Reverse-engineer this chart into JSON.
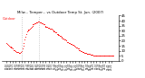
{
  "title": "Milw... Temper... vs Outdoor Temp St. Jun. (2007)",
  "legend_label": "Outdoor",
  "background_color": "#ffffff",
  "line_color": "#ff0000",
  "vline_color": "#aaaaaa",
  "ylim": [
    0,
    45
  ],
  "y_tick_interval": 5,
  "vlines": [
    20,
    43
  ],
  "num_points": 144,
  "temp_data": [
    18,
    17,
    16,
    15,
    14,
    14,
    13,
    13,
    12,
    11,
    11,
    10,
    10,
    9,
    9,
    9,
    8,
    8,
    8,
    9,
    10,
    12,
    15,
    18,
    21,
    24,
    27,
    29,
    30,
    31,
    31,
    32,
    33,
    34,
    35,
    36,
    36,
    37,
    37,
    38,
    38,
    38,
    39,
    39,
    38,
    38,
    38,
    37,
    37,
    36,
    36,
    35,
    34,
    34,
    34,
    33,
    33,
    33,
    32,
    32,
    32,
    31,
    30,
    29,
    29,
    28,
    28,
    27,
    27,
    26,
    26,
    25,
    25,
    24,
    23,
    22,
    22,
    21,
    21,
    20,
    20,
    19,
    19,
    18,
    18,
    17,
    17,
    17,
    16,
    16,
    15,
    15,
    14,
    13,
    13,
    12,
    12,
    11,
    11,
    10,
    10,
    9,
    9,
    9,
    8,
    8,
    8,
    7,
    7,
    7,
    7,
    7,
    6,
    6,
    6,
    6,
    5,
    5,
    5,
    5,
    5,
    5,
    5,
    5,
    5,
    5,
    5,
    5,
    5,
    5,
    5,
    5,
    5,
    5,
    5,
    5,
    5,
    5,
    5,
    5,
    5,
    5,
    5,
    5
  ]
}
